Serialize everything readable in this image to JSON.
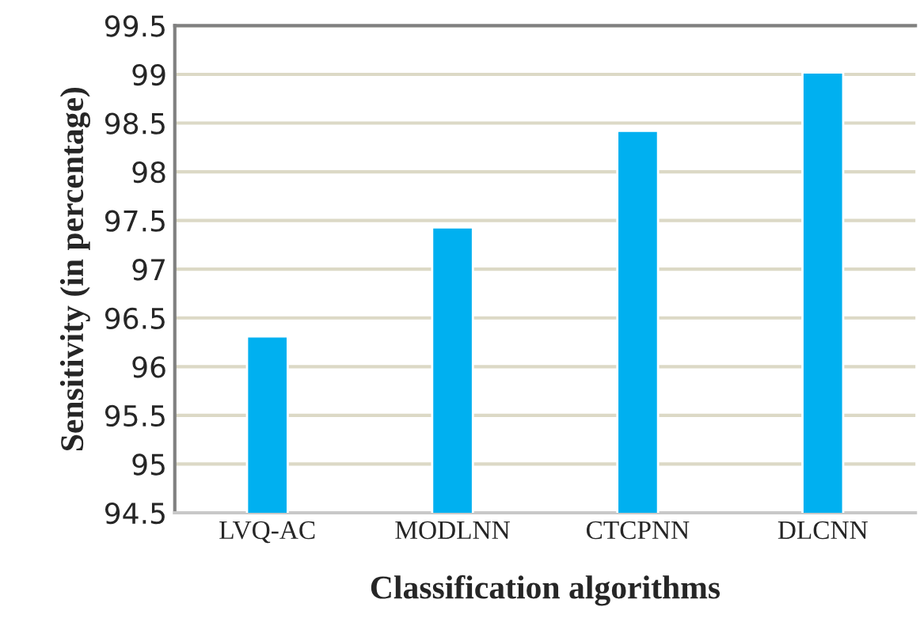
{
  "chart_data": {
    "type": "bar",
    "xlabel": "Classification algorithms",
    "ylabel": "Sensitivity (in percentage)",
    "categories": [
      "LVQ-AC",
      "MODLNN",
      "CTCPNN",
      "DLCNN"
    ],
    "values": [
      96.31,
      97.43,
      98.42,
      99.02
    ],
    "color": "#00b0f0",
    "ylim": [
      94.5,
      99.5
    ],
    "yticks": [
      94.5,
      95,
      95.5,
      96,
      96.5,
      97,
      97.5,
      98,
      98.5,
      99,
      99.5
    ],
    "grid": "y"
  }
}
